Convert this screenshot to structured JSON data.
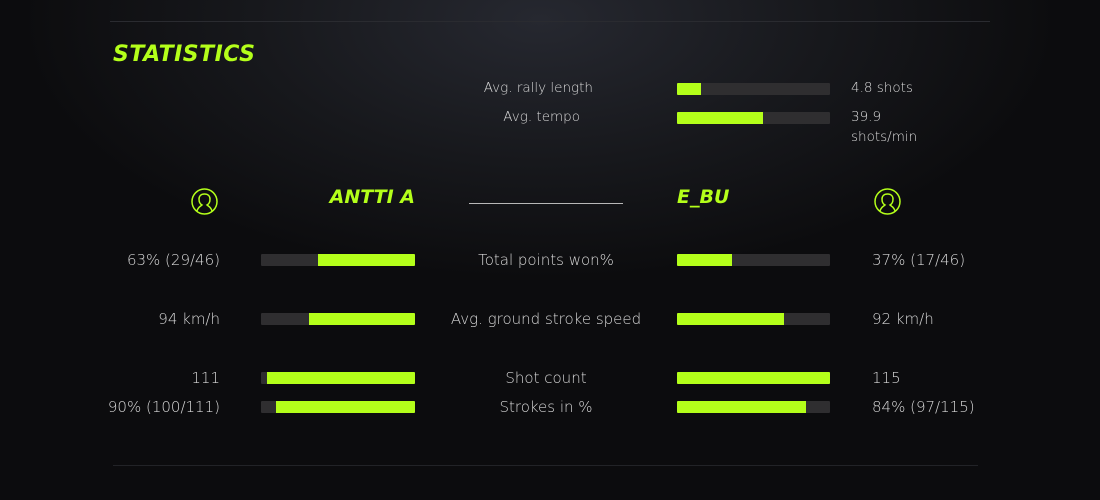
{
  "title": "STATISTICS",
  "accent": "#b4ff1a",
  "summary": [
    {
      "label": "Avg. rally length",
      "value": "4.8 shots",
      "fill": 0.16
    },
    {
      "label": "Avg. tempo",
      "value": "39.9",
      "value_line2": "shots/min",
      "fill": 0.56
    }
  ],
  "players": {
    "left": {
      "name": "ANTTI A",
      "icon": "user-icon"
    },
    "right": {
      "name": "E_BU",
      "icon": "user-icon"
    }
  },
  "stats": [
    {
      "label": "Total points won%",
      "left": "63% (29/46)",
      "right": "37% (17/46)",
      "left_fill": 0.63,
      "right_fill": 0.36
    },
    {
      "label": "Avg. ground stroke speed",
      "left": "94 km/h",
      "right": "92 km/h",
      "left_fill": 0.69,
      "right_fill": 0.7
    },
    {
      "label": "Shot count",
      "left": "111",
      "right": "115",
      "left_fill": 0.96,
      "right_fill": 1.0
    },
    {
      "label": "Strokes in %",
      "left": "90% (100/111)",
      "right": "84% (97/115)",
      "left_fill": 0.9,
      "right_fill": 0.84
    }
  ]
}
